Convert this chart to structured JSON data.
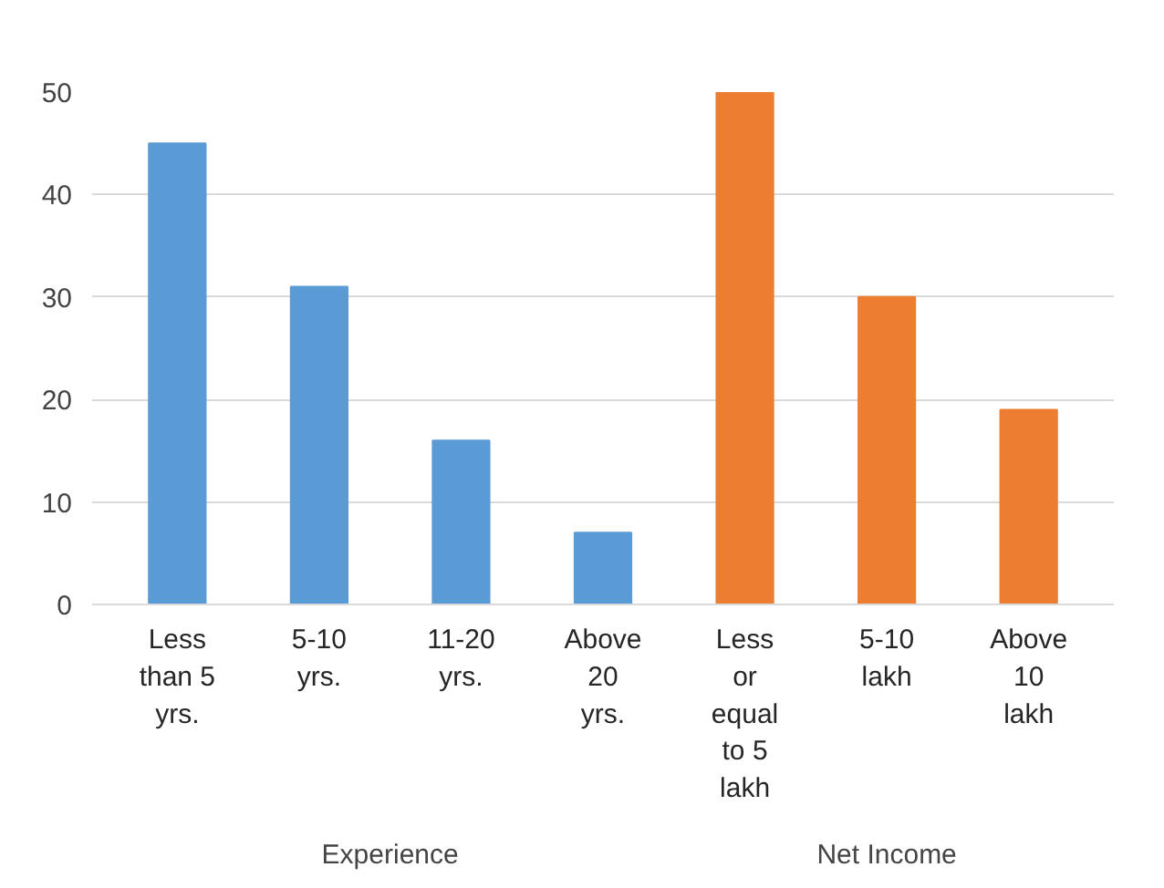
{
  "chart_data": {
    "type": "bar",
    "categories": [
      "Less than 5 yrs.",
      "5-10 yrs.",
      "11-20 yrs.",
      "Above 20 yrs.",
      "Less or equal to 5 lakh",
      "5-10 lakh",
      "Above 10 lakh"
    ],
    "values": [
      45,
      31,
      16,
      7,
      50,
      30,
      19
    ],
    "colors": [
      "#5b9bd5",
      "#5b9bd5",
      "#5b9bd5",
      "#5b9bd5",
      "#ed7d31",
      "#ed7d31",
      "#ed7d31"
    ],
    "annotations": [
      "Experience",
      "Net Income"
    ],
    "ylim": [
      0,
      50
    ],
    "yticks": [
      0,
      10,
      20,
      30,
      40,
      50
    ],
    "grid": "y"
  }
}
